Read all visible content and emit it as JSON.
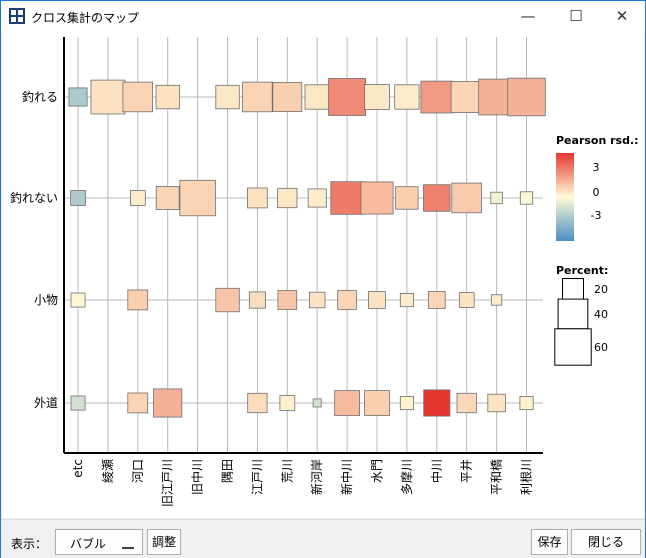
{
  "window": {
    "title": "クロス集計のマップ",
    "minimize_glyph": "—",
    "maximize_glyph": "☐",
    "close_glyph": "✕"
  },
  "toolbar": {
    "display_label": "表示：",
    "display_value": "バブル",
    "adjust_label": "調整",
    "save_label": "保存",
    "close_label": "閉じる"
  },
  "chart_data": {
    "type": "heatmap",
    "rows": [
      "釣れる",
      "釣れない",
      "小物",
      "外道"
    ],
    "columns": [
      "etc",
      "綾瀬",
      "河口",
      "旧江戸川",
      "旧中川",
      "隅田",
      "江戸川",
      "荒川",
      "新河岸",
      "新中川",
      "水門",
      "多摩川",
      "中川",
      "平井",
      "平和橋",
      "利根川"
    ],
    "percent": [
      [
        15,
        52,
        40,
        25,
        null,
        25,
        40,
        38,
        27,
        62,
        28,
        27,
        46,
        44,
        58,
        64
      ],
      [
        10,
        null,
        10,
        24,
        57,
        null,
        18,
        17,
        15,
        48,
        47,
        23,
        32,
        40,
        6,
        7
      ],
      [
        9,
        null,
        18,
        null,
        null,
        25,
        12,
        16,
        11,
        16,
        13,
        8,
        13,
        10,
        5,
        null
      ],
      [
        9,
        null,
        18,
        36,
        null,
        null,
        17,
        10,
        3,
        28,
        28,
        8,
        31,
        17,
        14,
        8
      ]
    ],
    "residual": [
      [
        -1.8,
        0.5,
        0.8,
        0.5,
        null,
        0.4,
        0.8,
        0.9,
        0.4,
        2.3,
        0.4,
        0.3,
        2.0,
        0.8,
        1.5,
        1.5
      ],
      [
        -1.8,
        null,
        0.3,
        0.8,
        0.8,
        null,
        0.5,
        0.4,
        0.3,
        2.6,
        1.3,
        0.9,
        2.5,
        1.0,
        -0.3,
        -0.1
      ],
      [
        0.1,
        null,
        0.9,
        null,
        null,
        1.1,
        0.6,
        1.1,
        0.5,
        0.8,
        0.5,
        0.3,
        0.8,
        0.5,
        0.3,
        null
      ],
      [
        -1.0,
        null,
        0.8,
        1.5,
        null,
        null,
        0.6,
        0.2,
        -1.0,
        1.3,
        0.9,
        0.2,
        4.2,
        0.7,
        0.5,
        0.2
      ]
    ],
    "legend_title": "Pearson rsd.:",
    "color_ticks": [
      "3",
      "0",
      "-3"
    ],
    "color_range": [
      -4,
      4
    ],
    "size_legend_title": "Percent:",
    "size_ticks": [
      20,
      40,
      60
    ],
    "colors": {
      "negative": "#4a8ec4",
      "neutral": "#fffbd6",
      "positive": "#e5362f"
    },
    "grid": true
  }
}
